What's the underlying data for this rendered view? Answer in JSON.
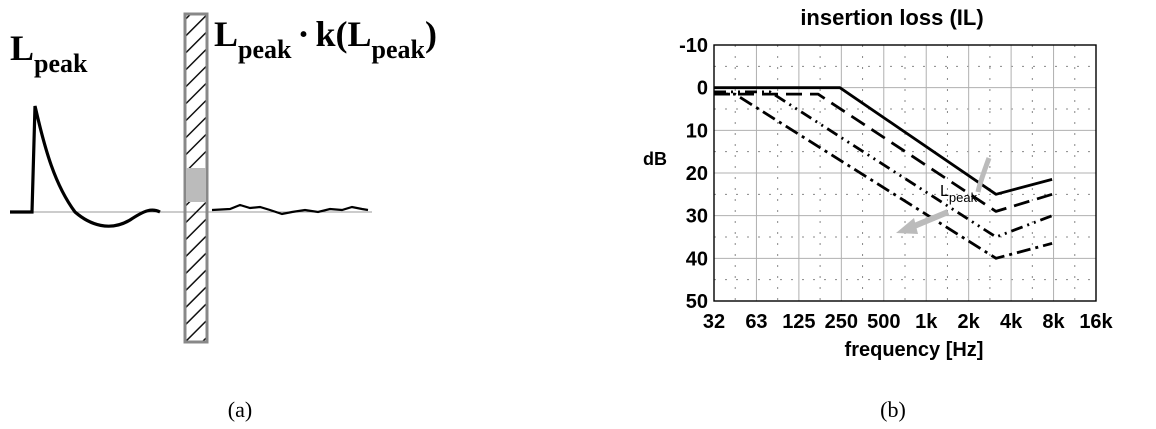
{
  "panel_a": {
    "caption": "(a)",
    "left_label": {
      "main": "L",
      "sub": "peak"
    },
    "right_label": {
      "main1": "L",
      "sub1": "peak",
      "dot": "·",
      "func": "k(L",
      "sub2": "peak",
      "close": ")"
    }
  },
  "panel_b": {
    "caption": "(b)",
    "arrow_label": {
      "main": "L",
      "sub": "peak"
    }
  },
  "chart_data": {
    "type": "line",
    "title": "insertion loss (IL)",
    "xlabel": "frequency [Hz]",
    "ylabel": "dB",
    "x_ticks": [
      "32",
      "63",
      "125",
      "250",
      "500",
      "1k",
      "2k",
      "4k",
      "8k",
      "16k"
    ],
    "y_ticks": [
      -10,
      0,
      10,
      20,
      30,
      40,
      50
    ],
    "ylim": [
      -10,
      50
    ],
    "y_inverted": true,
    "grid": true,
    "series": [
      {
        "style": "solid",
        "points": [
          [
            32,
            0
          ],
          [
            250,
            0
          ],
          [
            3200,
            25
          ],
          [
            8000,
            21.5
          ]
        ]
      },
      {
        "style": "dashed",
        "points": [
          [
            32,
            1.5
          ],
          [
            175,
            1.5
          ],
          [
            3200,
            29
          ],
          [
            8000,
            25
          ]
        ]
      },
      {
        "style": "dash-dot-dot",
        "points": [
          [
            32,
            1
          ],
          [
            80,
            1
          ],
          [
            3200,
            35
          ],
          [
            8000,
            30
          ]
        ]
      },
      {
        "style": "dash-dot",
        "points": [
          [
            32,
            1.5
          ],
          [
            45,
            1.5
          ],
          [
            3200,
            40
          ],
          [
            8000,
            36.5
          ]
        ]
      }
    ]
  }
}
